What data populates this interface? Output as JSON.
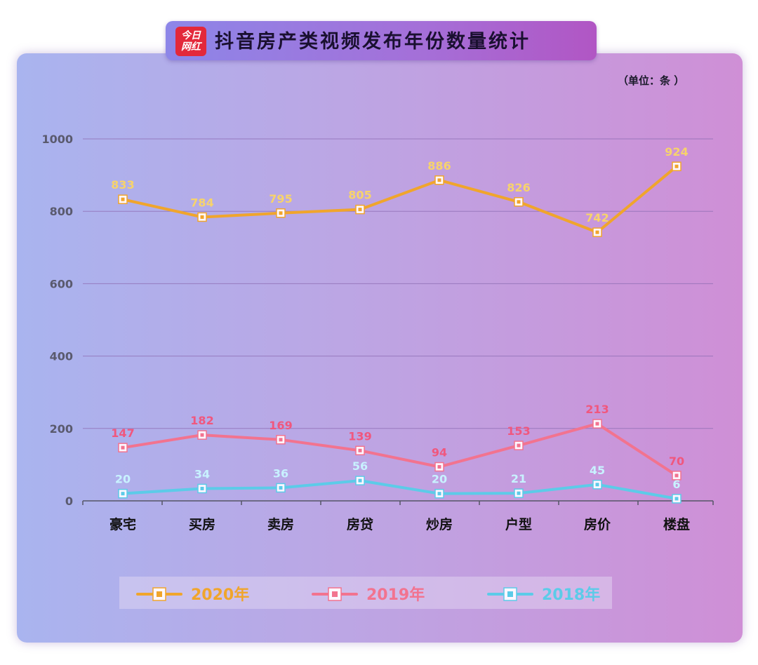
{
  "header": {
    "logo_text": "今日网红",
    "title": "抖音房产类视频发布年份数量统计",
    "unit": "（单位：条 ）"
  },
  "colors": {
    "series_2020": "#f0a52c",
    "series_2019": "#f2738f",
    "series_2018": "#5ccbe8",
    "label_2020": "#f7d36b",
    "label_2019": "#f0577e",
    "label_2018": "#c8f2ff",
    "grid": "#8f6fb5",
    "axis_text": "#5a5a6e"
  },
  "chart_data": {
    "type": "line",
    "title": "抖音房产类视频发布年份数量统计",
    "unit": "（单位：条 ）",
    "categories": [
      "豪宅",
      "买房",
      "卖房",
      "房贷",
      "炒房",
      "户型",
      "房价",
      "楼盘"
    ],
    "y_ticks": [
      "0",
      "200",
      "400",
      "600",
      "800",
      "1000"
    ],
    "ylim": [
      0,
      1000
    ],
    "grid": true,
    "legend_position": "bottom",
    "series": [
      {
        "name": "2020年",
        "values": [
          833,
          784,
          795,
          805,
          886,
          826,
          742,
          924
        ]
      },
      {
        "name": "2019年",
        "values": [
          147,
          182,
          169,
          139,
          94,
          153,
          213,
          70
        ]
      },
      {
        "name": "2018年",
        "values": [
          20,
          34,
          36,
          56,
          20,
          21,
          45,
          6
        ]
      }
    ]
  }
}
